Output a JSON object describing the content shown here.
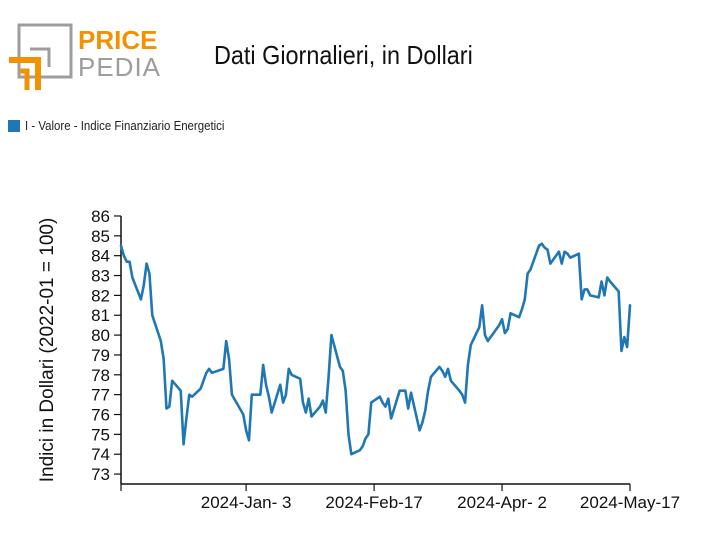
{
  "logo": {
    "line1": "PRICE",
    "line2": "PEDIA",
    "color_accent": "#f39200",
    "color_gray": "#9d9d9c"
  },
  "title": "Dati Giornalieri, in Dollari",
  "legend": {
    "label": "I - Valore - Indice Finanziario Energetici",
    "color": "#1f77b4"
  },
  "chart_data": {
    "type": "line",
    "ylabel": "Indici in Dollari (2022-01 = 100)",
    "xlabel": "",
    "ylim": [
      72.5,
      86.2
    ],
    "yticks": [
      73,
      74,
      75,
      76,
      77,
      78,
      79,
      80,
      81,
      82,
      83,
      84,
      85,
      86
    ],
    "xlim": [
      "2023-11-20",
      "2024-05-17"
    ],
    "xticks": [
      {
        "date": "2023-11-20",
        "label": ""
      },
      {
        "date": "2024-01-03",
        "label": "2024-Jan- 3"
      },
      {
        "date": "2024-02-17",
        "label": "2024-Feb-17"
      },
      {
        "date": "2024-04-02",
        "label": "2024-Apr- 2"
      },
      {
        "date": "2024-05-17",
        "label": "2024-May-17"
      }
    ],
    "series": [
      {
        "name": "I - Valore - Indice Finanziario Energetici",
        "color": "#1f77b4",
        "points": [
          [
            "2023-11-20",
            84.5
          ],
          [
            "2023-11-21",
            84.0
          ],
          [
            "2023-11-22",
            83.7
          ],
          [
            "2023-11-23",
            83.7
          ],
          [
            "2023-11-24",
            82.9
          ],
          [
            "2023-11-27",
            81.8
          ],
          [
            "2023-11-28",
            82.5
          ],
          [
            "2023-11-29",
            83.6
          ],
          [
            "2023-11-30",
            83.1
          ],
          [
            "2023-12-01",
            81.0
          ],
          [
            "2023-12-04",
            79.7
          ],
          [
            "2023-12-05",
            78.8
          ],
          [
            "2023-12-06",
            76.3
          ],
          [
            "2023-12-07",
            76.4
          ],
          [
            "2023-12-08",
            77.7
          ],
          [
            "2023-12-11",
            77.2
          ],
          [
            "2023-12-12",
            74.5
          ],
          [
            "2023-12-13",
            75.8
          ],
          [
            "2023-12-14",
            77.0
          ],
          [
            "2023-12-15",
            76.9
          ],
          [
            "2023-12-18",
            77.3
          ],
          [
            "2023-12-19",
            77.7
          ],
          [
            "2023-12-20",
            78.1
          ],
          [
            "2023-12-21",
            78.3
          ],
          [
            "2023-12-22",
            78.1
          ],
          [
            "2023-12-26",
            78.3
          ],
          [
            "2023-12-27",
            79.7
          ],
          [
            "2023-12-28",
            78.8
          ],
          [
            "2023-12-29",
            77.0
          ],
          [
            "2024-01-02",
            76.0
          ],
          [
            "2024-01-03",
            75.2
          ],
          [
            "2024-01-04",
            74.7
          ],
          [
            "2024-01-05",
            77.0
          ],
          [
            "2024-01-08",
            77.0
          ],
          [
            "2024-01-09",
            78.5
          ],
          [
            "2024-01-10",
            77.5
          ],
          [
            "2024-01-11",
            76.9
          ],
          [
            "2024-01-12",
            76.1
          ],
          [
            "2024-01-15",
            77.5
          ],
          [
            "2024-01-16",
            76.6
          ],
          [
            "2024-01-17",
            77.0
          ],
          [
            "2024-01-18",
            78.3
          ],
          [
            "2024-01-19",
            78.0
          ],
          [
            "2024-01-22",
            77.8
          ],
          [
            "2024-01-23",
            76.6
          ],
          [
            "2024-01-24",
            76.1
          ],
          [
            "2024-01-25",
            76.8
          ],
          [
            "2024-01-26",
            75.9
          ],
          [
            "2024-01-29",
            76.4
          ],
          [
            "2024-01-30",
            76.7
          ],
          [
            "2024-01-31",
            76.1
          ],
          [
            "2024-02-01",
            77.9
          ],
          [
            "2024-02-02",
            80.0
          ],
          [
            "2024-02-05",
            78.4
          ],
          [
            "2024-02-06",
            78.2
          ],
          [
            "2024-02-07",
            77.2
          ],
          [
            "2024-02-08",
            75.0
          ],
          [
            "2024-02-09",
            74.0
          ],
          [
            "2024-02-12",
            74.2
          ],
          [
            "2024-02-13",
            74.4
          ],
          [
            "2024-02-14",
            74.8
          ],
          [
            "2024-02-15",
            75.0
          ],
          [
            "2024-02-16",
            76.6
          ],
          [
            "2024-02-19",
            76.9
          ],
          [
            "2024-02-20",
            76.6
          ],
          [
            "2024-02-21",
            76.4
          ],
          [
            "2024-02-22",
            76.8
          ],
          [
            "2024-02-23",
            75.8
          ],
          [
            "2024-02-26",
            77.2
          ],
          [
            "2024-02-27",
            77.2
          ],
          [
            "2024-02-28",
            77.2
          ],
          [
            "2024-02-29",
            76.3
          ],
          [
            "2024-03-01",
            77.1
          ],
          [
            "2024-03-04",
            75.2
          ],
          [
            "2024-03-05",
            75.6
          ],
          [
            "2024-03-06",
            76.2
          ],
          [
            "2024-03-07",
            77.2
          ],
          [
            "2024-03-08",
            77.9
          ],
          [
            "2024-03-11",
            78.4
          ],
          [
            "2024-03-12",
            78.2
          ],
          [
            "2024-03-13",
            77.9
          ],
          [
            "2024-03-14",
            78.3
          ],
          [
            "2024-03-15",
            77.7
          ],
          [
            "2024-03-18",
            77.2
          ],
          [
            "2024-03-19",
            77.0
          ],
          [
            "2024-03-20",
            76.6
          ],
          [
            "2024-03-21",
            78.5
          ],
          [
            "2024-03-22",
            79.5
          ],
          [
            "2024-03-25",
            80.4
          ],
          [
            "2024-03-26",
            81.5
          ],
          [
            "2024-03-27",
            80.0
          ],
          [
            "2024-03-28",
            79.7
          ],
          [
            "2024-04-01",
            80.5
          ],
          [
            "2024-04-02",
            80.8
          ],
          [
            "2024-04-03",
            80.1
          ],
          [
            "2024-04-04",
            80.3
          ],
          [
            "2024-04-05",
            81.1
          ],
          [
            "2024-04-08",
            80.9
          ],
          [
            "2024-04-09",
            81.3
          ],
          [
            "2024-04-10",
            81.8
          ],
          [
            "2024-04-11",
            83.1
          ],
          [
            "2024-04-12",
            83.3
          ],
          [
            "2024-04-15",
            84.5
          ],
          [
            "2024-04-16",
            84.6
          ],
          [
            "2024-04-17",
            84.4
          ],
          [
            "2024-04-18",
            84.3
          ],
          [
            "2024-04-19",
            83.6
          ],
          [
            "2024-04-22",
            84.2
          ],
          [
            "2024-04-23",
            83.6
          ],
          [
            "2024-04-24",
            84.2
          ],
          [
            "2024-04-25",
            84.1
          ],
          [
            "2024-04-26",
            83.9
          ],
          [
            "2024-04-29",
            84.1
          ],
          [
            "2024-04-30",
            81.8
          ],
          [
            "2024-05-01",
            82.3
          ],
          [
            "2024-05-02",
            82.3
          ],
          [
            "2024-05-03",
            82.0
          ],
          [
            "2024-05-06",
            81.9
          ],
          [
            "2024-05-07",
            82.7
          ],
          [
            "2024-05-08",
            82.0
          ],
          [
            "2024-05-09",
            82.9
          ],
          [
            "2024-05-10",
            82.7
          ],
          [
            "2024-05-13",
            82.2
          ],
          [
            "2024-05-14",
            79.2
          ],
          [
            "2024-05-15",
            79.9
          ],
          [
            "2024-05-16",
            79.4
          ],
          [
            "2024-05-17",
            81.5
          ]
        ]
      }
    ]
  }
}
